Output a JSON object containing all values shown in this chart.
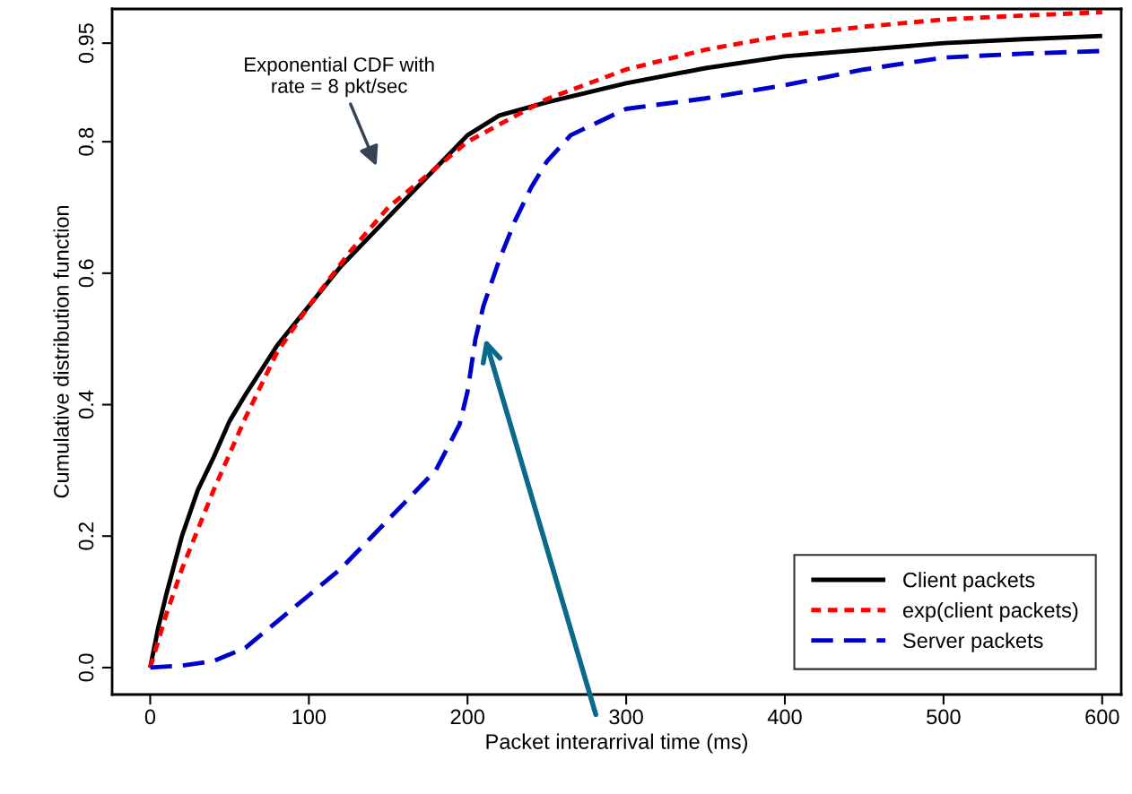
{
  "chart_data": {
    "type": "line",
    "xlabel": "Packet interarrival time (ms)",
    "ylabel": "Cumulative distribution function",
    "xlim": [
      -24,
      612
    ],
    "ylim": [
      -0.041,
      1.002
    ],
    "xticks": [
      0,
      100,
      200,
      300,
      400,
      500,
      600
    ],
    "yticks": [
      {
        "value": 0,
        "label": "0.0"
      },
      {
        "value": 0.2,
        "label": "0.2"
      },
      {
        "value": 0.4,
        "label": "0.4"
      },
      {
        "value": 0.6,
        "label": "0.6"
      },
      {
        "value": 0.8,
        "label": "0.8"
      },
      0.95
    ],
    "grid": false,
    "legend": "bottom right",
    "marker": "none",
    "annotations": [
      "Exponential CDF with\nrate = 8 pkt/sec"
    ],
    "series": [
      {
        "name": "Client packets",
        "color": "#000000",
        "line_style": "solid",
        "x": [
          0,
          5,
          10,
          20,
          30,
          40,
          50,
          60,
          80,
          100,
          120,
          140,
          160,
          180,
          200,
          220,
          250,
          300,
          350,
          400,
          450,
          500,
          550,
          600
        ],
        "values": [
          0,
          0.06,
          0.11,
          0.2,
          0.27,
          0.32,
          0.375,
          0.415,
          0.49,
          0.55,
          0.61,
          0.66,
          0.71,
          0.76,
          0.81,
          0.84,
          0.86,
          0.889,
          0.912,
          0.93,
          0.94,
          0.95,
          0.956,
          0.961
        ]
      },
      {
        "name": "exp(client packets)",
        "color": "#ff0000",
        "line_style": "dotted",
        "x": [
          0,
          10,
          20,
          40,
          60,
          80,
          100,
          125,
          150,
          175,
          200,
          250,
          300,
          350,
          400,
          450,
          500,
          550,
          600
        ],
        "values": [
          0,
          0.08,
          0.15,
          0.27,
          0.38,
          0.48,
          0.55,
          0.63,
          0.7,
          0.75,
          0.8,
          0.865,
          0.91,
          0.94,
          0.962,
          0.975,
          0.986,
          0.992,
          0.997
        ]
      },
      {
        "name": "Server packets",
        "color": "#0000cc",
        "line_style": "dashed",
        "x": [
          0,
          20,
          40,
          60,
          80,
          100,
          120,
          140,
          160,
          180,
          195,
          200,
          205,
          210,
          220,
          230,
          240,
          250,
          265,
          300,
          350,
          400,
          450,
          500,
          550,
          600
        ],
        "values": [
          0,
          0.003,
          0.01,
          0.03,
          0.07,
          0.11,
          0.15,
          0.2,
          0.25,
          0.3,
          0.37,
          0.42,
          0.5,
          0.55,
          0.62,
          0.68,
          0.73,
          0.77,
          0.81,
          0.85,
          0.866,
          0.886,
          0.91,
          0.928,
          0.934,
          0.938
        ]
      }
    ]
  }
}
